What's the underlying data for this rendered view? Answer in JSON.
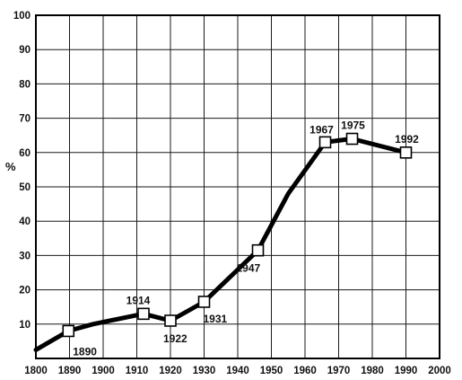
{
  "chart_data": {
    "type": "line",
    "title": "",
    "xlabel": "",
    "ylabel": "%",
    "xlim": [
      1800,
      2000
    ],
    "ylim": [
      0,
      100
    ],
    "x_ticks": [
      1800,
      1890,
      1900,
      1910,
      1920,
      1930,
      1940,
      1950,
      1960,
      1970,
      1980,
      1990,
      2000
    ],
    "x_tick_labels": [
      "1800",
      "1890",
      "1900",
      "1910",
      "1920",
      "1930",
      "1940",
      "1950",
      "1960",
      "1970",
      "1980",
      "1990",
      "2000"
    ],
    "y_ticks": [
      10,
      20,
      30,
      40,
      50,
      60,
      70,
      80,
      90,
      100
    ],
    "y_tick_labels": [
      "10",
      "20",
      "30",
      "40",
      "50",
      "60",
      "70",
      "80",
      "90",
      "100"
    ],
    "grid": true,
    "series": [
      {
        "x": [
          1800,
          1887,
          1897,
          1912,
          1920,
          1930,
          1946,
          1955,
          1966,
          1974,
          1990
        ],
        "y": [
          2.5,
          8,
          10,
          13,
          11,
          16.5,
          31.5,
          48,
          63,
          64,
          60
        ]
      }
    ],
    "markers": [
      {
        "year": "1890",
        "x": 1890,
        "y": 8
      },
      {
        "year": "1914",
        "x": 1914,
        "y": 13
      },
      {
        "year": "1922",
        "x": 1922,
        "y": 11
      },
      {
        "year": "1931",
        "x": 1931,
        "y": 16.5
      },
      {
        "year": "1947",
        "x": 1947,
        "y": 31.5
      },
      {
        "year": "1967",
        "x": 1967,
        "y": 63
      },
      {
        "year": "1975",
        "x": 1975,
        "y": 64
      },
      {
        "year": "1992",
        "x": 1992,
        "y": 60
      }
    ]
  }
}
